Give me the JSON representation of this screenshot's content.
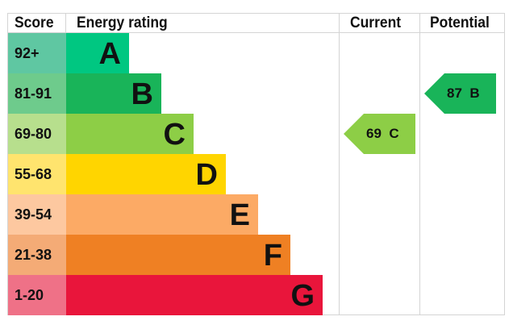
{
  "chart_data": {
    "type": "table",
    "headers": {
      "score": "Score",
      "rating": "Energy rating",
      "current": "Current",
      "potential": "Potential"
    },
    "bands": [
      {
        "score": "92+",
        "letter": "A",
        "color": "#00c781",
        "light": "#5fc7a2"
      },
      {
        "score": "81-91",
        "letter": "B",
        "color": "#19b459",
        "light": "#6ecb8c"
      },
      {
        "score": "69-80",
        "letter": "C",
        "color": "#8dce46",
        "light": "#b7df8d"
      },
      {
        "score": "55-68",
        "letter": "D",
        "color": "#ffd500",
        "light": "#ffe46e"
      },
      {
        "score": "39-54",
        "letter": "E",
        "color": "#fcaa65",
        "light": "#fdc8a0"
      },
      {
        "score": "21-38",
        "letter": "F",
        "color": "#ef8023",
        "light": "#f4ab76"
      },
      {
        "score": "1-20",
        "letter": "G",
        "color": "#e9153b",
        "light": "#ef7187"
      }
    ],
    "current": {
      "value": 69,
      "letter": "C",
      "label": "69  C",
      "color": "#8dce46"
    },
    "potential": {
      "value": 87,
      "letter": "B",
      "label": "87  B",
      "color": "#19b459"
    }
  }
}
